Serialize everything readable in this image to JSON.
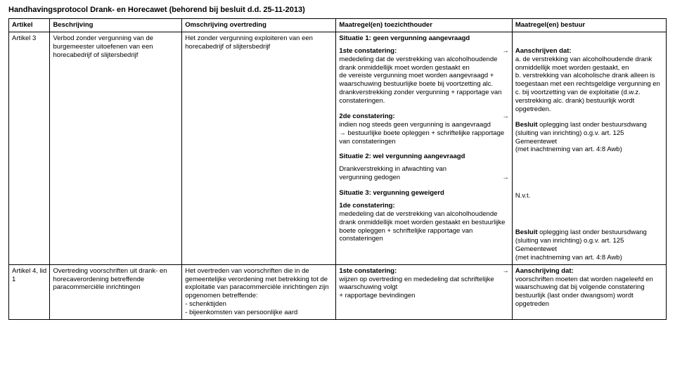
{
  "title": "Handhavingsprotocol Drank- en Horecawet (behorend bij besluit d.d. 25-11-2013)",
  "headers": {
    "artikel": "Artikel",
    "beschrijving": "Beschrijving",
    "omschrijving": "Omschrijving overtreding",
    "maatregel_toezicht": "Maatregel(en) toezichthouder",
    "maatregel_bestuur": "Maatregel(en) bestuur"
  },
  "row1": {
    "artikel": "Artikel 3",
    "beschrijving": "Verbod zonder vergunning van de burgemeester uitoefenen van een horecabedrijf of slijtersbedrijf",
    "omschrijving": "Het zonder vergunning exploiteren van een horecabedrijf of slijtersbedrijf",
    "toezicht": {
      "sit1_title": "Situatie 1: geen vergunning aangevraagd",
      "c1_label": "1ste constatering:",
      "c1_body": "mededeling dat de verstrekking van alcoholhoudende drank onmiddellijk moet worden gestaakt en\nde vereiste vergunning moet worden aangevraagd + waarschuwing bestuurlijke boete bij voortzetting alc. drankverstrekking zonder vergunning + rapportage van constateringen.",
      "c2_label": "2de constatering:",
      "c2_body": "indien nog steeds geen vergunning is aangevraagd\n→ bestuurlijke boete opleggen + schriftelijke rapportage van constateringen",
      "sit2_title": "Situatie 2: wel vergunning aangevraagd",
      "sit2_body_a": "Drankverstrekking in afwachting van",
      "sit2_body_b": "vergunning gedogen",
      "sit3_title": "Situatie 3: vergunning geweigerd",
      "sit3_c1_label": "1de constatering:",
      "sit3_body": "mededeling dat de verstrekking van alcoholhoudende drank onmiddellijk moet worden gestaakt en  bestuurlijke boete opleggen + schriftelijke rapportage van constateringen"
    },
    "bestuur": {
      "aan_label": "Aanschrijven dat:",
      "a": "a.  de verstrekking van alcoholhoudende drank onmiddellijk moet worden gestaakt, en",
      "b": "b.  verstrekking van alcoholische drank alleen is toegestaan met een rechtsgeldige vergunning en",
      "c": "c.  bij voortzetting van de exploitatie (d.w.z. verstrekking alc. drank) bestuurlijk wordt opgetreden.",
      "besluit_a": "Besluit oplegging last onder bestuursdwang (sluiting van inrichting) o.g.v. art. 125 Gemeentewet\n(met inachtneming van art. 4:8 Awb)",
      "nvt": "N.v.t.",
      "besluit_b": "Besluit oplegging last onder bestuursdwang (sluiting van inrichting) o.g.v. art. 125 Gemeentewet\n(met inachtneming van art. 4:8 Awb)"
    }
  },
  "row2": {
    "artikel": "Artikel 4, lid 1",
    "beschrijving": "Overtreding voorschriften uit drank- en horecaverordening betreffende paracommerciële inrichtingen",
    "omschrijving": "Het overtreden van voorschriften die in de gemeentelijke verordening met betrekking tot de exploitatie van paracommerciële inrichtingen zijn opgenomen betreffende:\n- schenktijden\n- bijeenkomsten van persoonlijke aard",
    "toezicht": {
      "c1_label": "1ste constatering:",
      "c1_body": "wijzen op overtreding en mededeling dat schriftelijke waarschuwing volgt\n+ rapportage bevindingen"
    },
    "bestuur": {
      "aan_label": "Aanschrijving dat:",
      "body": "voorschriften moeten dat worden nageleefd en waarschuwing dat bij volgende constatering bestuurlijk (last onder dwangsom) wordt opgetreden"
    }
  },
  "arrow": "→"
}
